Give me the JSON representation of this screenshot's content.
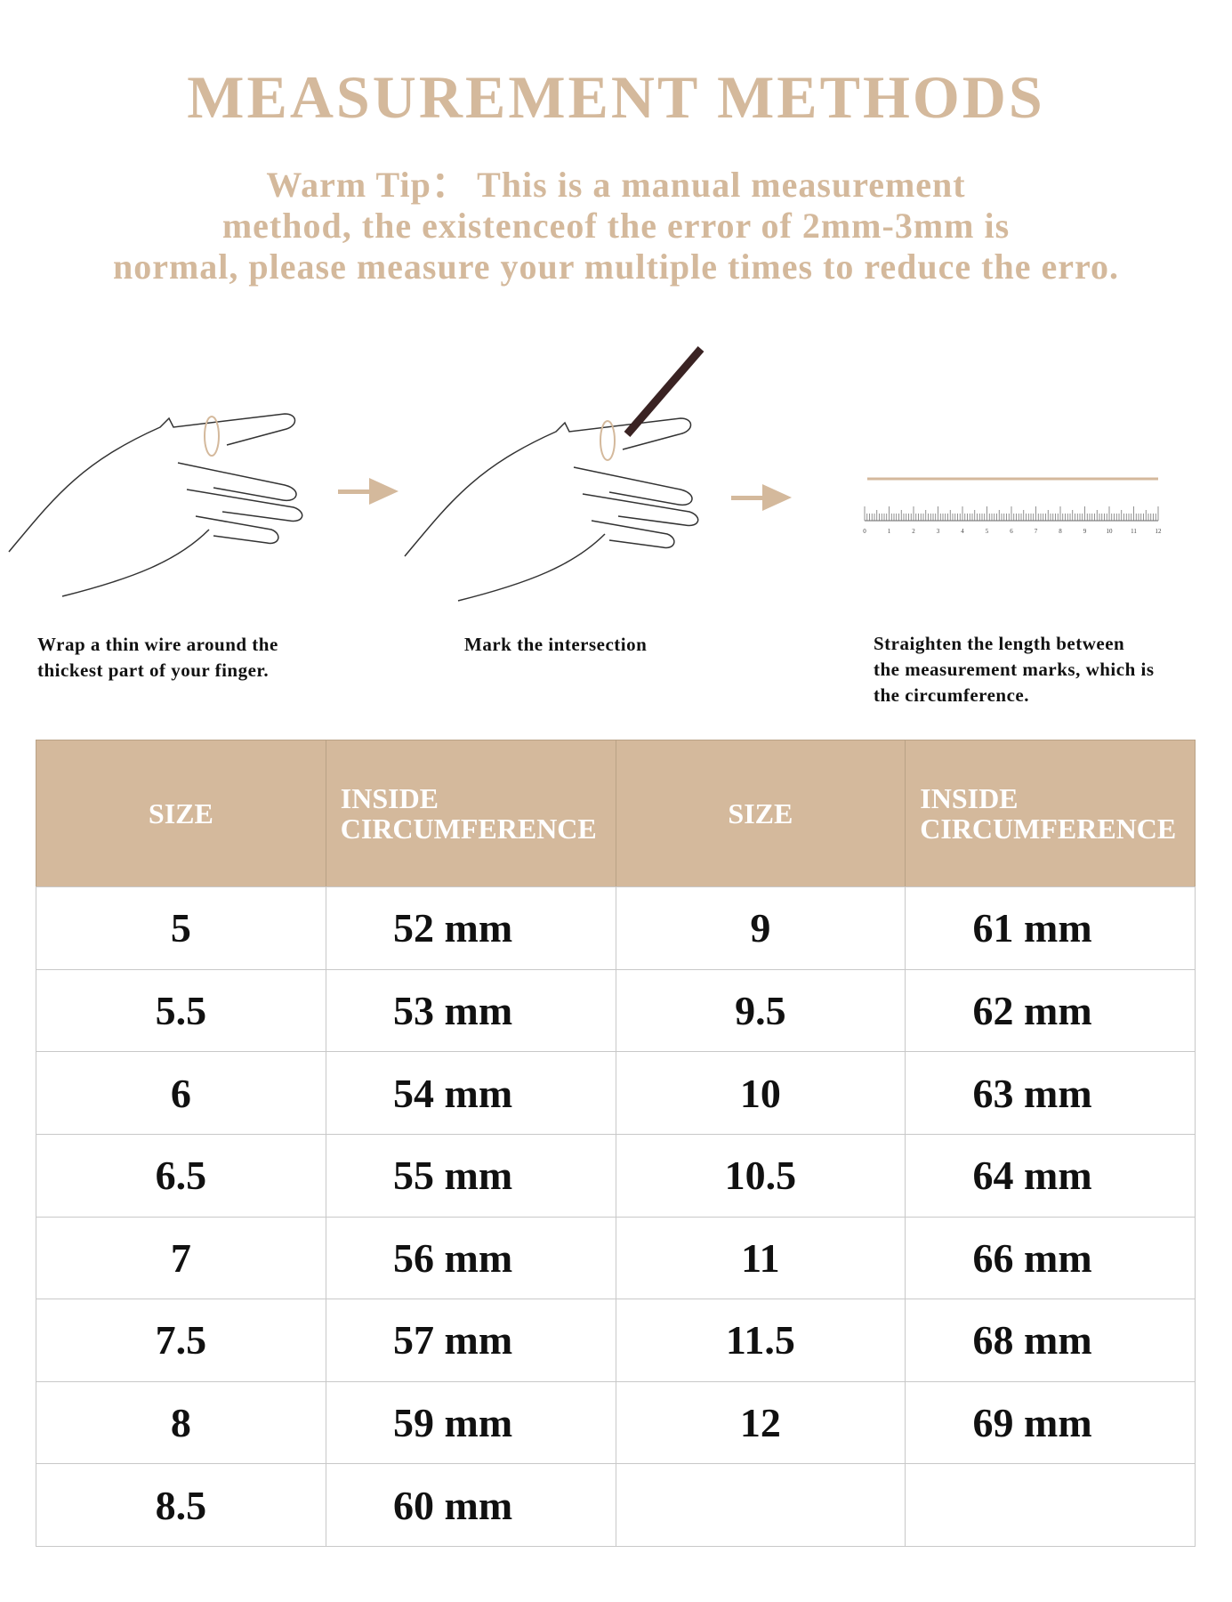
{
  "header": {
    "title": "MEASUREMENT METHODS",
    "tip_lines": [
      "Warm Tip： This is a manual measurement",
      "method, the existenceof the error of 2mm-3mm is",
      "normal, please measure your multiple times to reduce the erro."
    ]
  },
  "steps": [
    {
      "caption_lines": [
        "Wrap a thin wire around the",
        "thickest part of your finger."
      ]
    },
    {
      "caption_lines": [
        "Mark the intersection"
      ]
    },
    {
      "caption_lines": [
        "Straighten the length between",
        "the measurement marks, which is",
        "the circumference."
      ]
    }
  ],
  "ruler_labels": [
    "0",
    "1",
    "2",
    "3",
    "4",
    "5",
    "6",
    "7",
    "8",
    "9",
    "10",
    "11",
    "12"
  ],
  "table": {
    "headers": [
      [
        "SIZE"
      ],
      [
        "INSIDE",
        "CIRCUMFERENCE"
      ],
      [
        "SIZE"
      ],
      [
        "INSIDE",
        "CIRCUMFERENCE"
      ]
    ],
    "rows": [
      [
        "5",
        "52 mm",
        "9",
        "61 mm"
      ],
      [
        "5.5",
        "53 mm",
        "9.5",
        "62 mm"
      ],
      [
        "6",
        "54 mm",
        "10",
        "63 mm"
      ],
      [
        "6.5",
        "55 mm",
        "10.5",
        "64 mm"
      ],
      [
        "7",
        "56 mm",
        "11",
        "66 mm"
      ],
      [
        "7.5",
        "57 mm",
        "11.5",
        "68 mm"
      ],
      [
        "8",
        "59 mm",
        "12",
        "69 mm"
      ],
      [
        "8.5",
        "60 mm",
        null,
        null
      ]
    ]
  }
}
